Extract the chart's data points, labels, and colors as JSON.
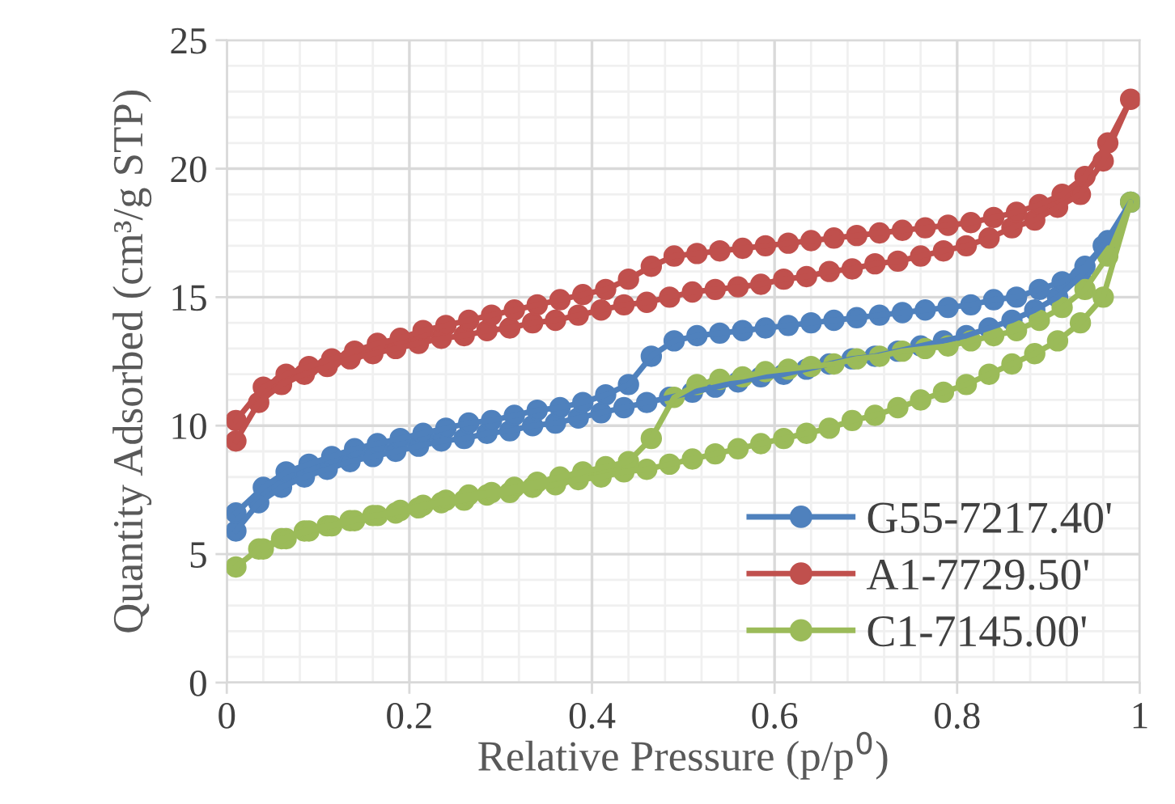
{
  "chart_data": {
    "type": "line",
    "xlabel": "Relative Pressure (p/p$^{0}$)",
    "ylabel": "Quantity Adsorbed (cm³/g STP)",
    "xlim": [
      0,
      1
    ],
    "xticks": [
      0,
      0.2,
      0.4,
      0.6,
      0.8,
      1
    ],
    "ylim": [
      0,
      25
    ],
    "yticks": [
      0,
      5,
      10,
      15,
      20,
      25
    ],
    "grid": true,
    "legend": "bottom right",
    "marker": "circle",
    "line_style": "solid",
    "series": [
      {
        "name": "G55-7217.40'",
        "color": "#4f81bd",
        "x": [
          0.01,
          0.035,
          0.06,
          0.085,
          0.11,
          0.135,
          0.16,
          0.185,
          0.21,
          0.235,
          0.26,
          0.285,
          0.31,
          0.335,
          0.36,
          0.385,
          0.41,
          0.435,
          0.46,
          0.485,
          0.51,
          0.535,
          0.56,
          0.585,
          0.61,
          0.635,
          0.66,
          0.685,
          0.71,
          0.735,
          0.76,
          0.785,
          0.81,
          0.835,
          0.86,
          0.885,
          0.91,
          0.935,
          0.96,
          0.99,
          0.965,
          0.94,
          0.915,
          0.89,
          0.865,
          0.84,
          0.815,
          0.79,
          0.765,
          0.74,
          0.715,
          0.69,
          0.665,
          0.64,
          0.615,
          0.59,
          0.565,
          0.54,
          0.515,
          0.49,
          0.465,
          0.44,
          0.415,
          0.39,
          0.365,
          0.34,
          0.315,
          0.29,
          0.265,
          0.24,
          0.215,
          0.19,
          0.165,
          0.14,
          0.115,
          0.09,
          0.065,
          0.04,
          0.01
        ],
        "values": [
          5.9,
          7.0,
          7.6,
          8.0,
          8.3,
          8.6,
          8.8,
          9.0,
          9.2,
          9.4,
          9.5,
          9.7,
          9.8,
          10.0,
          10.1,
          10.3,
          10.5,
          10.7,
          10.9,
          11.1,
          11.3,
          11.5,
          11.7,
          11.9,
          12.0,
          12.2,
          12.4,
          12.6,
          12.7,
          12.9,
          13.1,
          13.3,
          13.5,
          13.8,
          14.1,
          14.5,
          15.0,
          15.8,
          17.0,
          18.7,
          17.2,
          16.2,
          15.6,
          15.3,
          15.0,
          14.9,
          14.7,
          14.6,
          14.5,
          14.4,
          14.3,
          14.2,
          14.1,
          14.0,
          13.9,
          13.8,
          13.7,
          13.6,
          13.5,
          13.3,
          12.7,
          11.6,
          11.2,
          10.9,
          10.7,
          10.6,
          10.4,
          10.2,
          10.1,
          9.9,
          9.7,
          9.5,
          9.3,
          9.1,
          8.8,
          8.5,
          8.2,
          7.6,
          6.6
        ]
      },
      {
        "name": "A1-7729.50'",
        "color": "#c0504d",
        "x": [
          0.01,
          0.035,
          0.06,
          0.085,
          0.11,
          0.135,
          0.16,
          0.185,
          0.21,
          0.235,
          0.26,
          0.285,
          0.31,
          0.335,
          0.36,
          0.385,
          0.41,
          0.435,
          0.46,
          0.485,
          0.51,
          0.535,
          0.56,
          0.585,
          0.61,
          0.635,
          0.66,
          0.685,
          0.71,
          0.735,
          0.76,
          0.785,
          0.81,
          0.835,
          0.86,
          0.885,
          0.91,
          0.935,
          0.96,
          0.99,
          0.965,
          0.94,
          0.915,
          0.89,
          0.865,
          0.84,
          0.815,
          0.79,
          0.765,
          0.74,
          0.715,
          0.69,
          0.665,
          0.64,
          0.615,
          0.59,
          0.565,
          0.54,
          0.515,
          0.49,
          0.465,
          0.44,
          0.415,
          0.39,
          0.365,
          0.34,
          0.315,
          0.29,
          0.265,
          0.24,
          0.215,
          0.19,
          0.165,
          0.14,
          0.115,
          0.09,
          0.065,
          0.04,
          0.01
        ],
        "values": [
          9.4,
          10.9,
          11.6,
          12.0,
          12.3,
          12.6,
          12.8,
          13.0,
          13.2,
          13.4,
          13.5,
          13.7,
          13.8,
          14.0,
          14.1,
          14.3,
          14.5,
          14.7,
          14.8,
          15.0,
          15.2,
          15.3,
          15.4,
          15.5,
          15.7,
          15.8,
          16.0,
          16.1,
          16.3,
          16.4,
          16.6,
          16.8,
          17.0,
          17.3,
          17.7,
          18.0,
          18.5,
          19.0,
          20.3,
          22.7,
          21.0,
          19.7,
          19.0,
          18.6,
          18.3,
          18.1,
          17.9,
          17.8,
          17.7,
          17.6,
          17.5,
          17.4,
          17.3,
          17.2,
          17.1,
          17.0,
          16.9,
          16.8,
          16.7,
          16.6,
          16.2,
          15.7,
          15.3,
          15.1,
          14.9,
          14.7,
          14.5,
          14.3,
          14.1,
          13.9,
          13.7,
          13.4,
          13.2,
          12.9,
          12.6,
          12.3,
          12.0,
          11.5,
          10.2
        ]
      },
      {
        "name": "C1-7145.00'",
        "color": "#9bbb59",
        "x": [
          0.01,
          0.035,
          0.06,
          0.085,
          0.11,
          0.135,
          0.16,
          0.185,
          0.21,
          0.235,
          0.26,
          0.285,
          0.31,
          0.335,
          0.36,
          0.385,
          0.41,
          0.435,
          0.46,
          0.485,
          0.51,
          0.535,
          0.56,
          0.585,
          0.61,
          0.635,
          0.66,
          0.685,
          0.71,
          0.735,
          0.76,
          0.785,
          0.81,
          0.835,
          0.86,
          0.885,
          0.91,
          0.935,
          0.96,
          0.99,
          0.965,
          0.94,
          0.915,
          0.89,
          0.865,
          0.84,
          0.815,
          0.79,
          0.765,
          0.74,
          0.715,
          0.69,
          0.665,
          0.64,
          0.615,
          0.59,
          0.565,
          0.54,
          0.515,
          0.49,
          0.465,
          0.44,
          0.415,
          0.39,
          0.365,
          0.34,
          0.315,
          0.29,
          0.265,
          0.24,
          0.215,
          0.19,
          0.165,
          0.14,
          0.115,
          0.09,
          0.065,
          0.04
        ],
        "values": [
          4.5,
          5.2,
          5.6,
          5.9,
          6.1,
          6.3,
          6.5,
          6.6,
          6.8,
          7.0,
          7.1,
          7.3,
          7.4,
          7.6,
          7.7,
          7.9,
          8.0,
          8.2,
          8.3,
          8.5,
          8.7,
          8.9,
          9.1,
          9.3,
          9.5,
          9.7,
          9.9,
          10.2,
          10.4,
          10.7,
          11.0,
          11.3,
          11.6,
          12.0,
          12.4,
          12.8,
          13.3,
          14.0,
          15.0,
          18.7,
          16.6,
          15.3,
          14.6,
          14.1,
          13.7,
          13.5,
          13.3,
          13.1,
          13.0,
          12.9,
          12.7,
          12.6,
          12.4,
          12.3,
          12.2,
          12.1,
          11.9,
          11.8,
          11.6,
          11.1,
          9.5,
          8.6,
          8.4,
          8.2,
          8.0,
          7.8,
          7.6,
          7.4,
          7.3,
          7.1,
          6.9,
          6.7,
          6.5,
          6.3,
          6.1,
          5.9,
          5.6,
          5.2
        ]
      }
    ]
  }
}
